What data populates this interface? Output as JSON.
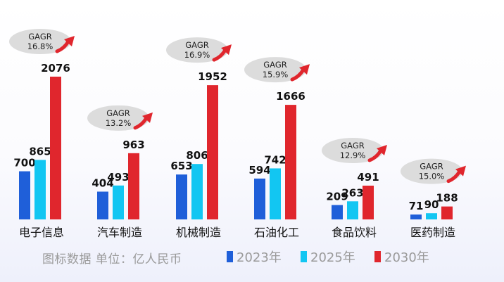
{
  "chart_data": {
    "type": "bar",
    "categories": [
      "电子信息",
      "汽车制造",
      "机械制造",
      "石油化工",
      "食品饮料",
      "医药制造"
    ],
    "series": [
      {
        "name": "2023年",
        "values": [
          700,
          404,
          653,
          594,
          209,
          71
        ]
      },
      {
        "name": "2025年",
        "values": [
          865,
          493,
          806,
          742,
          263,
          90
        ]
      },
      {
        "name": "2030年",
        "values": [
          2076,
          963,
          1952,
          1666,
          491,
          188
        ]
      }
    ],
    "cagr_labels": [
      {
        "title": "GAGR",
        "value": "16.8%"
      },
      {
        "title": "GAGR",
        "value": "13.2%"
      },
      {
        "title": "GAGR",
        "value": "16.9%"
      },
      {
        "title": "GAGR",
        "value": "15.9%"
      },
      {
        "title": "GAGR",
        "value": "12.9%"
      },
      {
        "title": "GAGR",
        "value": "15.0%"
      }
    ],
    "note": "图标数据  单位：亿人民币",
    "legend_position": "bottom",
    "grid": false,
    "colors": {
      "s2023": "#1f5fd9",
      "s2025": "#12c6f2",
      "s2030": "#e0262d",
      "bubble": "#dcdcdc",
      "arrow": "#e0262d",
      "label_text": "#111111",
      "note_text": "#9a9a9a"
    }
  }
}
